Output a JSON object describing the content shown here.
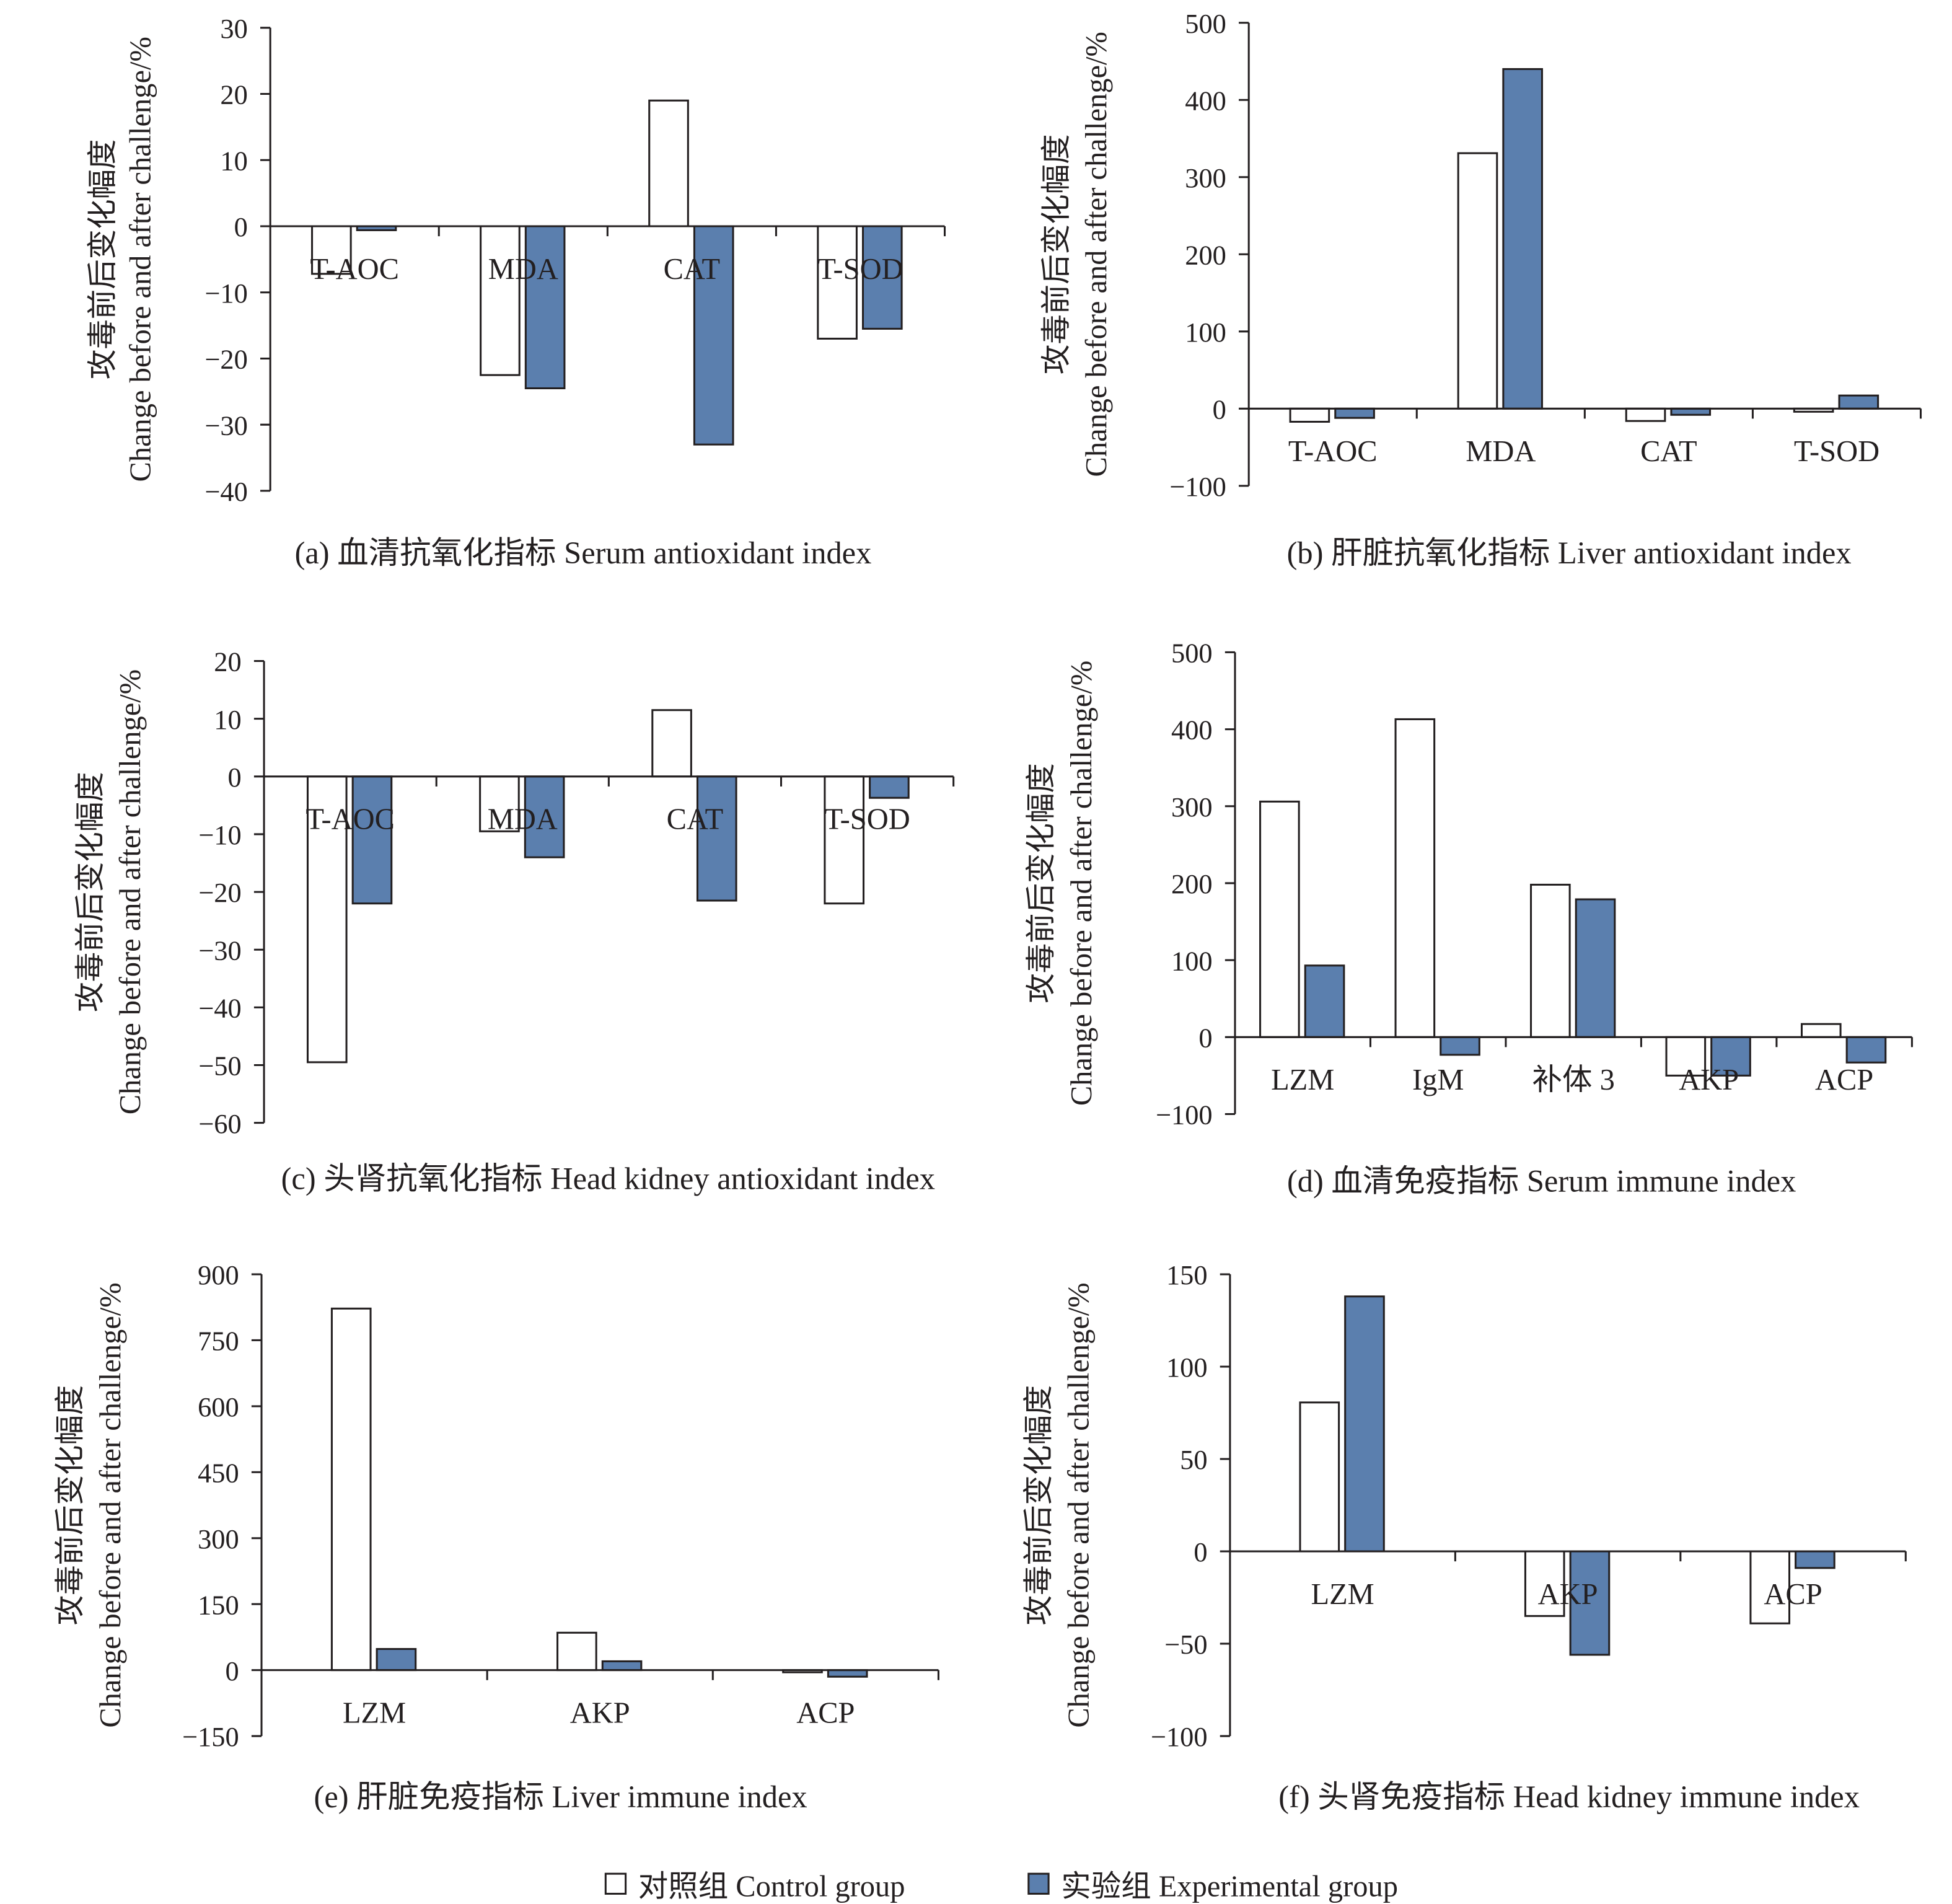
{
  "colors": {
    "control": "#ffffff",
    "experimental": "#5b7fae",
    "axis": "#231f20"
  },
  "y_axis_label": [
    "攻毒前后变化幅度",
    "Change before and after challenge/%"
  ],
  "legend": [
    {
      "label": "对照组 Control group",
      "color": "#ffffff"
    },
    {
      "label": "实验组 Experimental group",
      "color": "#5b7fae"
    }
  ],
  "chart_data": [
    {
      "type": "bar",
      "title": "(a) 血清抗氧化指标 Serum antioxidant index",
      "ylim": [
        -40,
        30
      ],
      "yticks": [
        30,
        20,
        10,
        0,
        -10,
        -20,
        -30,
        -40
      ],
      "categories": [
        "T-AOC",
        "MDA",
        "CAT",
        "T-SOD"
      ],
      "series": [
        {
          "name": "对照组 Control group",
          "values": [
            -7.2,
            -22.5,
            19,
            -17
          ]
        },
        {
          "name": "实验组 Experimental group",
          "values": [
            -0.6,
            -24.5,
            -33,
            -15.5
          ]
        }
      ]
    },
    {
      "type": "bar",
      "title": "(b) 肝脏抗氧化指标 Liver antioxidant index",
      "ylim": [
        -100,
        500
      ],
      "yticks": [
        500,
        400,
        300,
        200,
        100,
        0,
        -100
      ],
      "categories": [
        "T-AOC",
        "MDA",
        "CAT",
        "T-SOD"
      ],
      "series": [
        {
          "name": "对照组 Control group",
          "values": [
            -17,
            331,
            -16,
            -4
          ]
        },
        {
          "name": "实验组 Experimental group",
          "values": [
            -12,
            440,
            -8,
            17
          ]
        }
      ]
    },
    {
      "type": "bar",
      "title": "(c) 头肾抗氧化指标 Head kidney antioxidant index",
      "ylim": [
        -60,
        20
      ],
      "yticks": [
        20,
        10,
        0,
        -10,
        -20,
        -30,
        -40,
        -50,
        -60
      ],
      "categories": [
        "T-AOC",
        "MDA",
        "CAT",
        "T-SOD"
      ],
      "series": [
        {
          "name": "对照组 Control group",
          "values": [
            -49.5,
            -9.5,
            11.5,
            -22
          ]
        },
        {
          "name": "实验组 Experimental group",
          "values": [
            -22,
            -14,
            -21.5,
            -3.7
          ]
        }
      ]
    },
    {
      "type": "bar",
      "title": "(d) 血清免疫指标 Serum immune index",
      "ylim": [
        -100,
        500
      ],
      "yticks": [
        500,
        400,
        300,
        200,
        100,
        0,
        -100
      ],
      "categories": [
        "LZM",
        "IgM",
        "补体 3",
        "AKP",
        "ACP"
      ],
      "series": [
        {
          "name": "对照组 Control group",
          "values": [
            306,
            413,
            198,
            -50,
            17
          ]
        },
        {
          "name": "实验组 Experimental group",
          "values": [
            93,
            -23,
            179,
            -50,
            -33
          ]
        }
      ]
    },
    {
      "type": "bar",
      "title": "(e) 肝脏免疫指标 Liver immune index",
      "ylim": [
        -150,
        900
      ],
      "yticks": [
        900,
        750,
        600,
        450,
        300,
        150,
        0,
        -150
      ],
      "categories": [
        "LZM",
        "AKP",
        "ACP"
      ],
      "series": [
        {
          "name": "对照组 Control group",
          "values": [
            822,
            85,
            -5
          ]
        },
        {
          "name": "实验组 Experimental group",
          "values": [
            48,
            20,
            -15
          ]
        }
      ]
    },
    {
      "type": "bar",
      "title": "(f) 头肾免疫指标 Head kidney immune index",
      "ylim": [
        -100,
        150
      ],
      "yticks": [
        150,
        100,
        50,
        0,
        -50,
        -100
      ],
      "categories": [
        "LZM",
        "AKP",
        "ACP"
      ],
      "series": [
        {
          "name": "对照组 Control group",
          "values": [
            80.6,
            -35,
            -39
          ]
        },
        {
          "name": "实验组 Experimental group",
          "values": [
            138,
            -56,
            -9
          ]
        }
      ]
    }
  ]
}
